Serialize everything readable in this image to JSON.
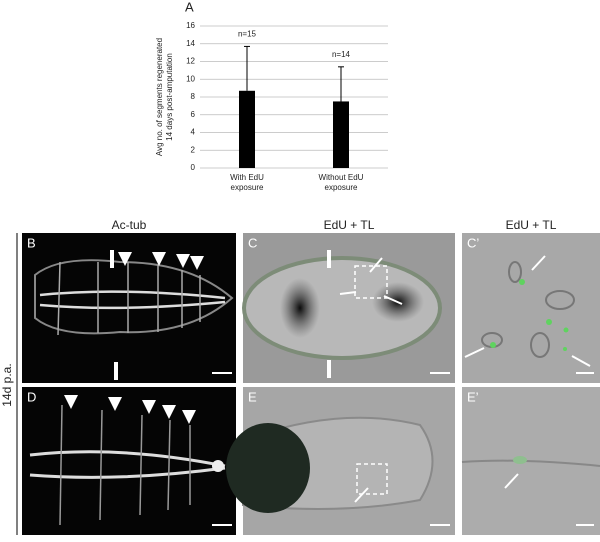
{
  "chart_data": {
    "type": "bar",
    "panel_label": "A",
    "ylabel": [
      "Avg no. of segments regenerated",
      "14 days post-amputation"
    ],
    "categories": [
      "With EdU exposure",
      "Without EdU exposure"
    ],
    "values": [
      8.7,
      7.5
    ],
    "errors": [
      5.0,
      3.9
    ],
    "annotations": [
      "n=15",
      "n=14"
    ],
    "color": "#000000",
    "ylim": [
      0,
      16
    ],
    "yticks": [
      0,
      2,
      4,
      6,
      8,
      10,
      12,
      14,
      16
    ],
    "grid": true
  },
  "figure": {
    "column_titles": [
      "Ac-tub",
      "EdU + TL",
      "EdU + TL"
    ],
    "row_label": "14d p.a.",
    "panel_labels": [
      "B",
      "C",
      "C’",
      "D",
      "E",
      "E’"
    ]
  }
}
